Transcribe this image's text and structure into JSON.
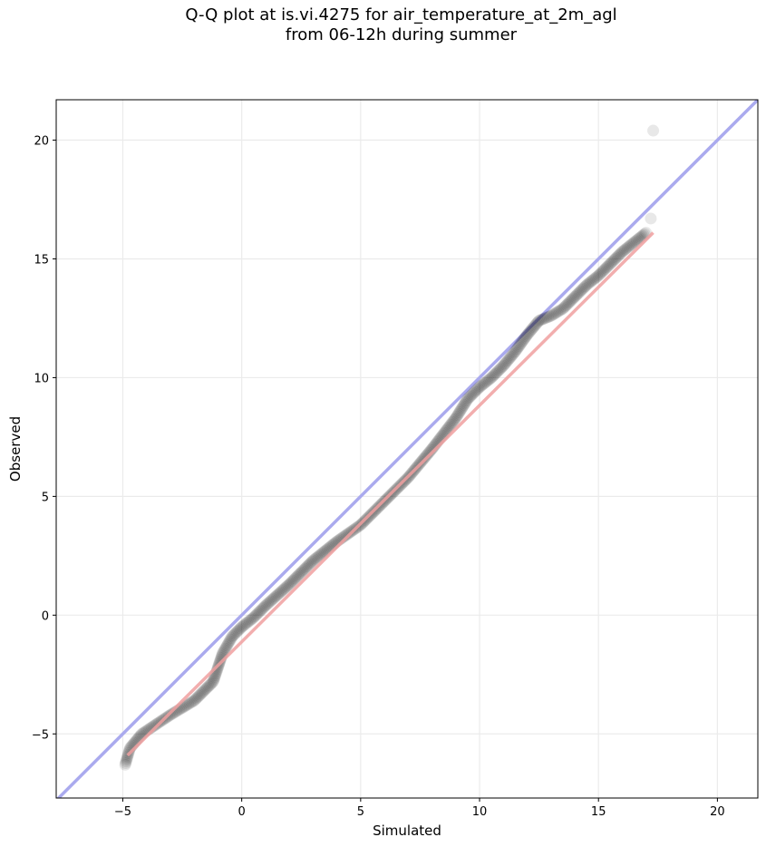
{
  "chart_data": {
    "type": "scatter",
    "title_line1": "Q-Q plot at is.vi.4275 for air_temperature_at_2m_agl",
    "title_line2": "from 06-12h during summer",
    "xlabel": "Simulated",
    "ylabel": "Observed",
    "xlim": [
      -7.8,
      21.7
    ],
    "ylim": [
      -7.7,
      21.7
    ],
    "x_ticks": [
      -5,
      0,
      5,
      10,
      15,
      20
    ],
    "x_tick_labels": [
      "−5",
      "0",
      "5",
      "10",
      "15",
      "20"
    ],
    "y_ticks": [
      -5,
      0,
      5,
      10,
      15,
      20
    ],
    "y_tick_labels": [
      "−5",
      "0",
      "5",
      "10",
      "15",
      "20"
    ],
    "grid": true,
    "reference_line": {
      "name": "1:1",
      "color": "#aaaaee",
      "points": [
        [
          -7.8,
          -7.8
        ],
        [
          21.7,
          21.7
        ]
      ]
    },
    "fit_line": {
      "color": "#f0a0a0",
      "points": [
        [
          -4.8,
          -5.9
        ],
        [
          17.3,
          16.1
        ]
      ]
    },
    "points_color": "#000000",
    "qq_knots": {
      "x": [
        -4.9,
        -4.7,
        -4.2,
        -3.6,
        -3.0,
        -2.5,
        -2.0,
        -1.5,
        -1.2,
        -1.0,
        -0.8,
        -0.4,
        0.0,
        0.5,
        1.0,
        2.0,
        3.0,
        4.0,
        5.0,
        6.0,
        7.0,
        8.0,
        9.0,
        9.5,
        10.0,
        10.5,
        11.0,
        11.5,
        12.0,
        12.5,
        13.0,
        13.5,
        14.0,
        14.5,
        15.0,
        15.5,
        16.0,
        16.5,
        17.0
      ],
      "y": [
        -6.3,
        -5.6,
        -5.0,
        -4.6,
        -4.2,
        -3.9,
        -3.6,
        -3.1,
        -2.8,
        -2.2,
        -1.6,
        -0.9,
        -0.5,
        -0.1,
        0.4,
        1.3,
        2.3,
        3.1,
        3.8,
        4.8,
        5.8,
        7.0,
        8.3,
        9.1,
        9.6,
        10.0,
        10.5,
        11.1,
        11.8,
        12.4,
        12.6,
        12.9,
        13.4,
        13.9,
        14.3,
        14.8,
        15.3,
        15.7,
        16.1
      ]
    },
    "outliers": [
      {
        "x": 17.2,
        "y": 16.7
      },
      {
        "x": 17.3,
        "y": 20.4
      }
    ]
  }
}
